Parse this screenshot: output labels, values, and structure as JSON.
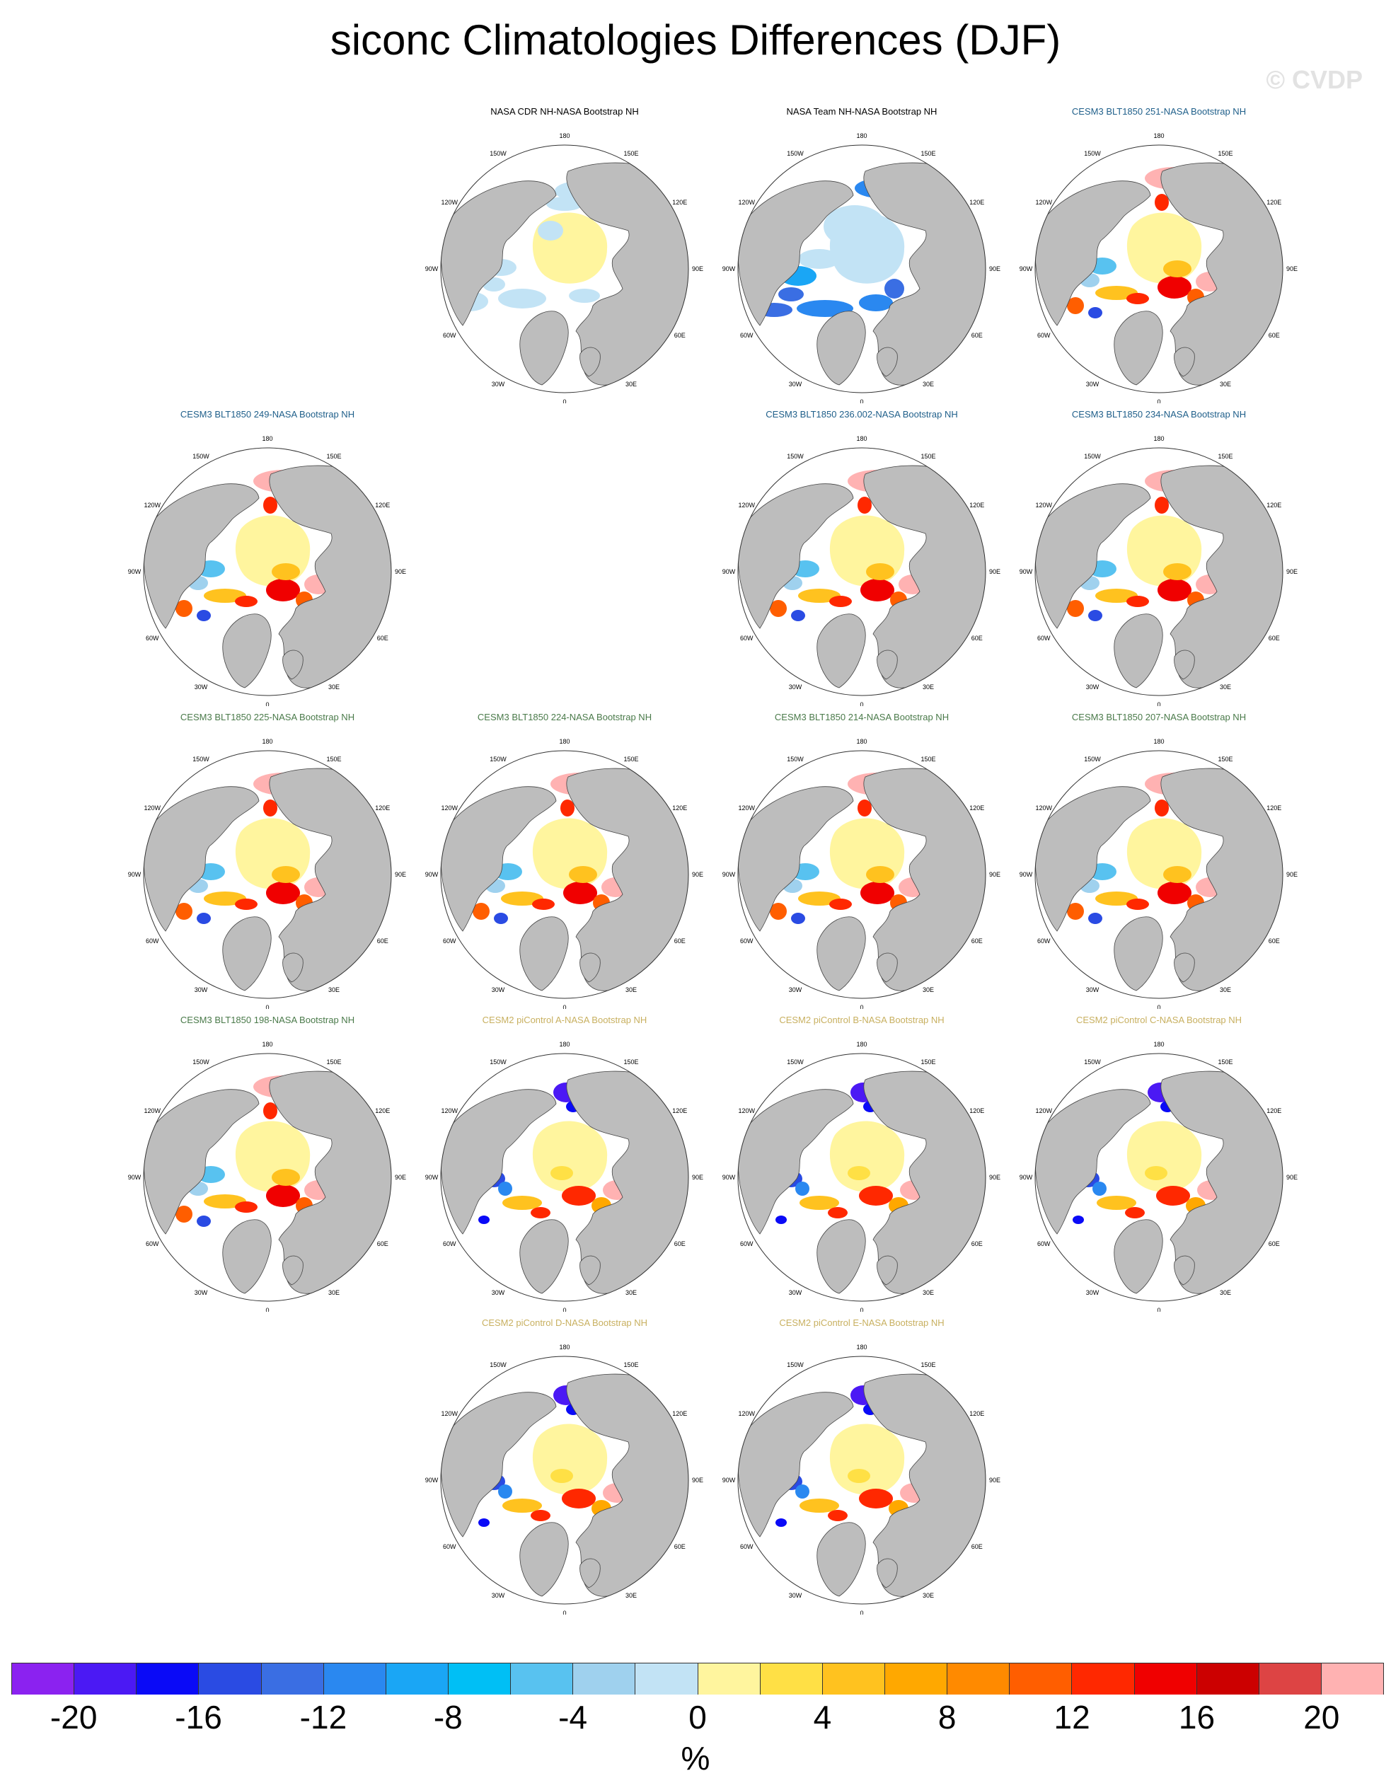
{
  "title": "siconc Climatologies Differences (DJF)",
  "watermark": "© CVDP",
  "chart_data": {
    "type": "heatmap",
    "projection": "north polar stereographic",
    "season": "DJF",
    "variable": "siconc",
    "units": "%",
    "lon_labels": [
      "180",
      "150E",
      "120E",
      "90E",
      "60E",
      "30E",
      "0",
      "30W",
      "60W",
      "90W",
      "120W",
      "150W"
    ],
    "panels": [
      {
        "title": "NASA CDR NH-NASA Bootstrap NH",
        "title_color": "#000000",
        "pattern": "nasa-cdr"
      },
      {
        "title": "NASA Team NH-NASA Bootstrap NH",
        "title_color": "#000000",
        "pattern": "nasa-team"
      },
      {
        "title": "CESM3 BLT1850 251-NASA Bootstrap NH",
        "title_color": "#1f5f8a",
        "pattern": "blt"
      },
      {
        "title": "CESM3 BLT1850 249-NASA Bootstrap NH",
        "title_color": "#1f5f8a",
        "pattern": "blt"
      },
      {
        "title": "CESM3 BLT1850 236.002-NASA Bootstrap NH",
        "title_color": "#1f5f8a",
        "pattern": "blt"
      },
      {
        "title": "CESM3 BLT1850 234-NASA Bootstrap NH",
        "title_color": "#1f5f8a",
        "pattern": "blt"
      },
      {
        "title": "CESM3 BLT1850 225-NASA Bootstrap NH",
        "title_color": "#4a7a4a",
        "pattern": "blt"
      },
      {
        "title": "CESM3 BLT1850 224-NASA Bootstrap NH",
        "title_color": "#4a7a4a",
        "pattern": "blt"
      },
      {
        "title": "CESM3 BLT1850 214-NASA Bootstrap NH",
        "title_color": "#4a7a4a",
        "pattern": "blt"
      },
      {
        "title": "CESM3 BLT1850 207-NASA Bootstrap NH",
        "title_color": "#4a7a4a",
        "pattern": "blt"
      },
      {
        "title": "CESM3 BLT1850 198-NASA Bootstrap NH",
        "title_color": "#4a7a4a",
        "pattern": "blt"
      },
      {
        "title": "CESM2 piControl A-NASA Bootstrap NH",
        "title_color": "#c8b060",
        "pattern": "cesm2"
      },
      {
        "title": "CESM2 piControl B-NASA Bootstrap NH",
        "title_color": "#c8b060",
        "pattern": "cesm2"
      },
      {
        "title": "CESM2 piControl C-NASA Bootstrap NH",
        "title_color": "#c8b060",
        "pattern": "cesm2"
      },
      {
        "title": "CESM2 piControl D-NASA Bootstrap NH",
        "title_color": "#c8b060",
        "pattern": "cesm2"
      },
      {
        "title": "CESM2 piControl E-NASA Bootstrap NH",
        "title_color": "#c8b060",
        "pattern": "cesm2"
      }
    ],
    "colorbar": {
      "label": "%",
      "tick_labels": [
        "-20",
        "-16",
        "-12",
        "-8",
        "-4",
        "0",
        "4",
        "8",
        "12",
        "16",
        "20"
      ],
      "colors": [
        "#8b22f0",
        "#4b19f4",
        "#0a0af7",
        "#2a4be3",
        "#3a6ee3",
        "#2a88f0",
        "#1aa6f5",
        "#00bff5",
        "#58c2f0",
        "#9fd1ee",
        "#c2e3f5",
        "#fff59e",
        "#ffe045",
        "#ffc21f",
        "#ffa800",
        "#ff8a00",
        "#ff5e00",
        "#ff2800",
        "#f00000",
        "#cc0000",
        "#dd4444",
        "#ffb2b2"
      ]
    }
  }
}
